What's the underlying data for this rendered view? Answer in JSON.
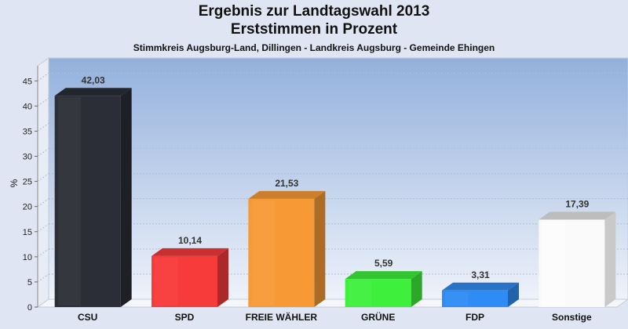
{
  "chart_data": {
    "type": "bar",
    "title": "Ergebnis zur Landtagswahl 2013",
    "subtitle_line": "Erststimmen in Prozent",
    "caption": "Stimmkreis Augsburg-Land, Dillingen - Landkreis Augsburg - Gemeinde Ehingen",
    "ylabel": "%",
    "xlabel": "",
    "ylim": [
      0,
      48
    ],
    "yticks": [
      0,
      5,
      10,
      15,
      20,
      25,
      30,
      35,
      40,
      45
    ],
    "grid": true,
    "categories": [
      "CSU",
      "SPD",
      "FREIE WÄHLER",
      "GRÜNE",
      "FDP",
      "Sonstige"
    ],
    "values": [
      42.03,
      10.14,
      21.53,
      5.59,
      3.31,
      17.39
    ],
    "value_labels": [
      "42,03",
      "10,14",
      "21,53",
      "5,59",
      "3,31",
      "17,39"
    ],
    "colors": [
      "#2b2e36",
      "#f73a3a",
      "#f79a36",
      "#3ef03c",
      "#2f8cf4",
      "#fafafa"
    ]
  }
}
